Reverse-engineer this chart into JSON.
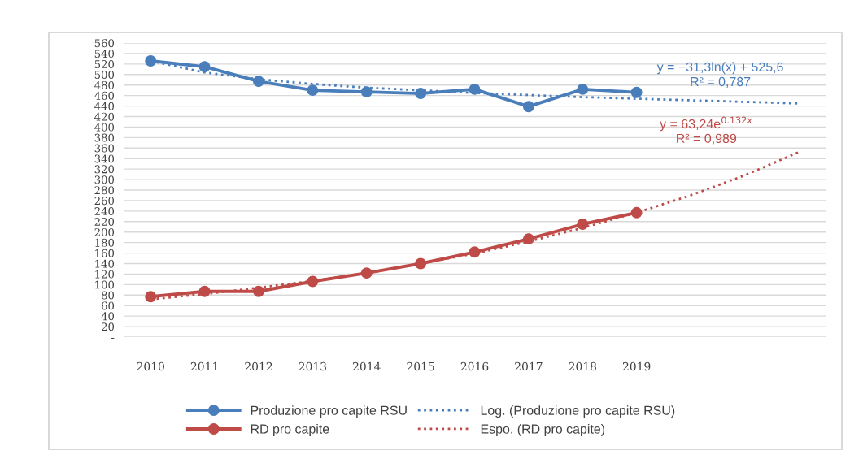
{
  "chart_data": {
    "type": "line",
    "categories": [
      "2010",
      "2011",
      "2012",
      "2013",
      "2014",
      "2015",
      "2016",
      "2017",
      "2018",
      "2019",
      null,
      null,
      null
    ],
    "series": [
      {
        "name": "Produzione pro capite RSU",
        "color": "#4a7ebb",
        "marker": "circle",
        "line_style": "solid",
        "values": [
          526,
          515,
          487,
          470,
          467,
          464,
          472,
          439,
          472,
          466,
          null,
          null,
          null
        ]
      },
      {
        "name": "RD pro capite",
        "color": "#be4b48",
        "marker": "circle",
        "line_style": "solid",
        "values": [
          77,
          87,
          87,
          106,
          122,
          140,
          162,
          187,
          215,
          237,
          null,
          null,
          null
        ]
      },
      {
        "name": "Log. (Produzione pro capite RSU)",
        "color": "#4a7ebb",
        "marker": "none",
        "line_style": "dotted",
        "values": [
          526,
          504,
          491,
          482,
          475,
          470,
          465,
          461,
          457,
          454,
          451,
          448,
          445
        ]
      },
      {
        "name": "Espo. (RD pro capite)",
        "color": "#be4b48",
        "marker": "none",
        "line_style": "dotted",
        "values": [
          72,
          82,
          94,
          107,
          122,
          140,
          159,
          182,
          208,
          237,
          270,
          308,
          352
        ]
      }
    ],
    "annotations": [
      "y = −31,3ln(x) + 525,6",
      "R² = 0,787",
      "y = 63,24e$^{0.132x}$",
      "R² = 0,989"
    ],
    "ylim": [
      0,
      560
    ],
    "yticks": [
      {
        "value": 0,
        "label": "-"
      },
      20,
      40,
      60,
      80,
      100,
      120,
      140,
      160,
      180,
      200,
      220,
      240,
      260,
      280,
      300,
      320,
      340,
      360,
      380,
      400,
      420,
      440,
      460,
      480,
      500,
      520,
      540,
      560
    ],
    "grid": "y",
    "legend": "bottom"
  }
}
